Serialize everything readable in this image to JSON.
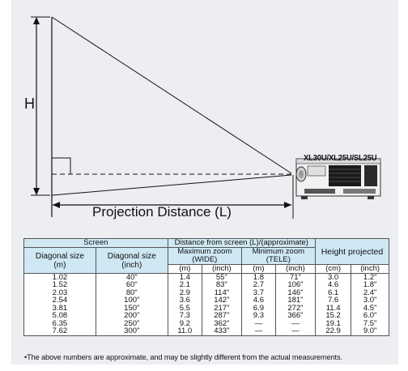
{
  "model_label": "XL30U/XL25U/SL25U",
  "height_label": "H",
  "distance_label": "Projection Distance (L)",
  "table": {
    "header_screen": "Screen",
    "header_distance": "Distance from screen (L)/(approximate)",
    "header_height": "Height projected",
    "diag_m_line1": "Diagonal size",
    "diag_m_line2": "(m)",
    "diag_in_line1": "Diagonal size",
    "diag_in_line2": "(inch)",
    "max_zoom_line1": "Maximum zoom",
    "max_zoom_line2": "(WIDE)",
    "min_zoom_line1": "Minimum zoom",
    "min_zoom_line2": "(TELE)",
    "unit_m": "(m)",
    "unit_inch": "(inch)",
    "unit_cm": "(cm)",
    "rows": [
      [
        "1.02",
        "40\"",
        "1.4",
        "55\"",
        "1.8",
        "71\"",
        "3.0",
        "1.2\""
      ],
      [
        "1.52",
        "60\"",
        "2.1",
        "83\"",
        "2.7",
        "106\"",
        "4.6",
        "1.8\""
      ],
      [
        "2.03",
        "80\"",
        "2.9",
        "114\"",
        "3.7",
        "146\"",
        "6.1",
        "2.4\""
      ],
      [
        "2.54",
        "100\"",
        "3.6",
        "142\"",
        "4.6",
        "181\"",
        "7.6",
        "3.0\""
      ],
      [
        "3.81",
        "150\"",
        "5.5",
        "217\"",
        "6.9",
        "272\"",
        "11.4",
        "4.5\""
      ],
      [
        "5.08",
        "200\"",
        "7.3",
        "287\"",
        "9.3",
        "366\"",
        "15.2",
        "6.0\""
      ],
      [
        "6.35",
        "250\"",
        "9.2",
        "362\"",
        "—",
        "—",
        "19.1",
        "7.5\""
      ],
      [
        "7.62",
        "300\"",
        "11.0",
        "433\"",
        "—",
        "—",
        "22.9",
        "9.0\""
      ]
    ]
  },
  "note": "•The above numbers are approximate, and may be slightly different from the actual measurements."
}
